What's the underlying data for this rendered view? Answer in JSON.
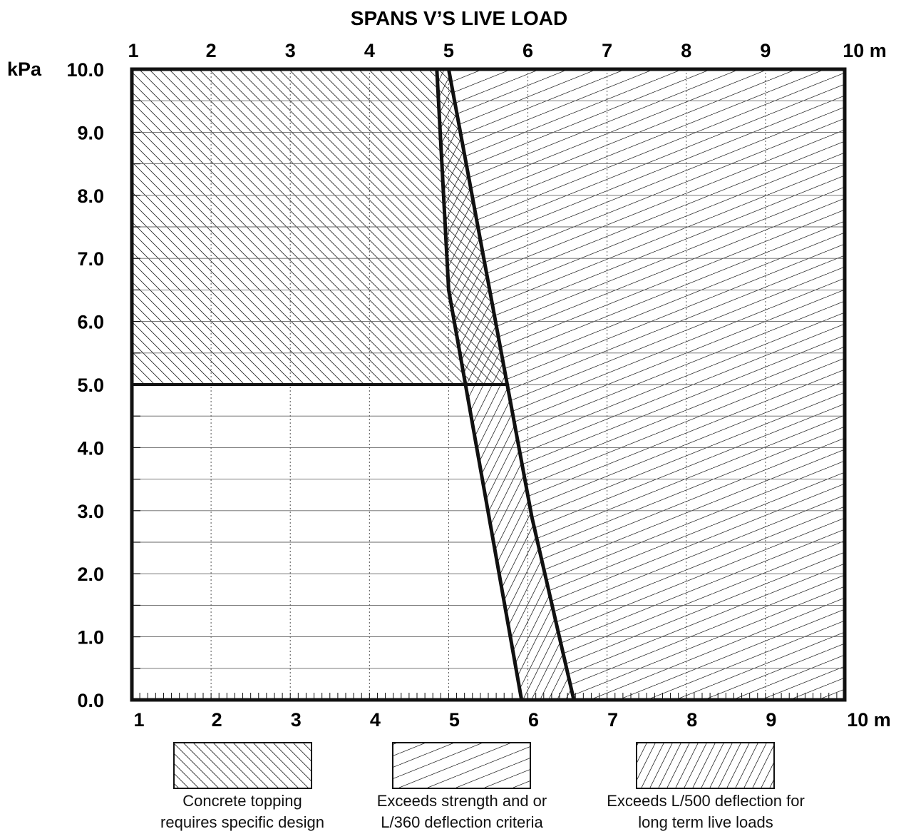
{
  "chart_data": {
    "type": "area",
    "title": "SPANS V’S LIVE LOAD",
    "x_axis": {
      "range": [
        1,
        10
      ],
      "unit": "m",
      "tick_labels": [
        "1",
        "2",
        "3",
        "4",
        "5",
        "6",
        "7",
        "8",
        "9",
        "10"
      ],
      "tick_values": [
        1,
        2,
        3,
        4,
        5,
        6,
        7,
        8,
        9,
        10
      ],
      "last_tick_label": "10 m"
    },
    "y_axis": {
      "range": [
        0,
        10
      ],
      "unit": "kPa",
      "tick_labels": [
        "0.0",
        "1.0",
        "2.0",
        "3.0",
        "4.0",
        "5.0",
        "6.0",
        "7.0",
        "8.0",
        "9.0",
        "10.0"
      ],
      "tick_values": [
        0,
        1,
        2,
        3,
        4,
        5,
        6,
        7,
        8,
        9,
        10
      ]
    },
    "grid": true,
    "boundaries": {
      "strength_l360": [
        [
          5.92,
          0
        ],
        [
          5.0,
          6.5
        ],
        [
          4.85,
          10
        ]
      ],
      "l500": [
        [
          6.58,
          0
        ],
        [
          6.05,
          2.9
        ],
        [
          5.0,
          10
        ]
      ],
      "topping_load": 5.0
    },
    "legend": {
      "placement": "bottom",
      "entries": [
        {
          "label": "Concrete topping\nrequires specific design",
          "pattern": "backslash-hatch"
        },
        {
          "label": "Exceeds strength and or\nL/360 deflection criteria",
          "pattern": "fine-slash-hatch"
        },
        {
          "label": "Exceeds L/500 deflection for\nlong term live loads",
          "pattern": "steep-slash-hatch"
        }
      ]
    }
  }
}
